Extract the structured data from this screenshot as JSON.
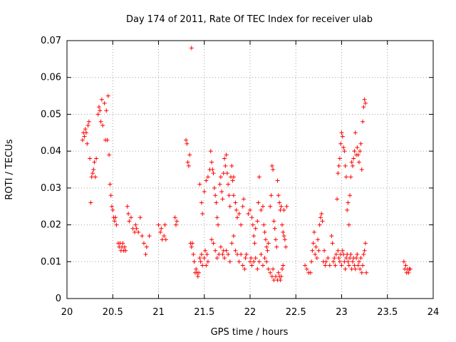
{
  "chart_data": {
    "type": "scatter",
    "title": "Day 174 of 2011, Rate Of TEC Index for receiver ulab",
    "xlabel": "GPS time / hours",
    "ylabel": "ROTI / TECUs",
    "xlim": [
      20,
      24
    ],
    "ylim": [
      0,
      0.07
    ],
    "grid": true,
    "marker": "+",
    "marker_color": "#ff0000",
    "x_ticks": [
      {
        "value": 20,
        "label": "20"
      },
      {
        "value": 20.5,
        "label": "20.5"
      },
      {
        "value": 21,
        "label": "21"
      },
      {
        "value": 21.5,
        "label": "21.5"
      },
      {
        "value": 22,
        "label": "22"
      },
      {
        "value": 22.5,
        "label": "22.5"
      },
      {
        "value": 23,
        "label": "23"
      },
      {
        "value": 23.5,
        "label": "23.5"
      },
      {
        "value": 24,
        "label": "24"
      }
    ],
    "y_ticks": [
      {
        "value": 0,
        "label": "0"
      },
      {
        "value": 0.01,
        "label": "0.01"
      },
      {
        "value": 0.02,
        "label": "0.02"
      },
      {
        "value": 0.03,
        "label": "0.03"
      },
      {
        "value": 0.04,
        "label": "0.04"
      },
      {
        "value": 0.05,
        "label": "0.05"
      },
      {
        "value": 0.06,
        "label": "0.06"
      },
      {
        "value": 0.07,
        "label": "0.07"
      }
    ],
    "points": [
      [
        20.17,
        0.043
      ],
      [
        20.18,
        0.045
      ],
      [
        20.19,
        0.044
      ],
      [
        20.2,
        0.046
      ],
      [
        20.21,
        0.045
      ],
      [
        20.22,
        0.042
      ],
      [
        20.23,
        0.047
      ],
      [
        20.24,
        0.048
      ],
      [
        20.25,
        0.038
      ],
      [
        20.26,
        0.026
      ],
      [
        20.27,
        0.033
      ],
      [
        20.28,
        0.034
      ],
      [
        20.29,
        0.035
      ],
      [
        20.3,
        0.037
      ],
      [
        20.31,
        0.033
      ],
      [
        20.32,
        0.038
      ],
      [
        20.34,
        0.05
      ],
      [
        20.35,
        0.052
      ],
      [
        20.36,
        0.051
      ],
      [
        20.37,
        0.048
      ],
      [
        20.38,
        0.054
      ],
      [
        20.39,
        0.047
      ],
      [
        20.41,
        0.053
      ],
      [
        20.42,
        0.043
      ],
      [
        20.43,
        0.051
      ],
      [
        20.44,
        0.043
      ],
      [
        20.45,
        0.055
      ],
      [
        20.46,
        0.039
      ],
      [
        20.47,
        0.031
      ],
      [
        20.48,
        0.028
      ],
      [
        20.49,
        0.025
      ],
      [
        20.5,
        0.024
      ],
      [
        20.51,
        0.022
      ],
      [
        20.52,
        0.021
      ],
      [
        20.53,
        0.022
      ],
      [
        20.54,
        0.02
      ],
      [
        20.56,
        0.015
      ],
      [
        20.57,
        0.014
      ],
      [
        20.58,
        0.015
      ],
      [
        20.59,
        0.013
      ],
      [
        20.6,
        0.014
      ],
      [
        20.61,
        0.015
      ],
      [
        20.62,
        0.013
      ],
      [
        20.63,
        0.014
      ],
      [
        20.64,
        0.013
      ],
      [
        20.66,
        0.025
      ],
      [
        20.67,
        0.023
      ],
      [
        20.68,
        0.021
      ],
      [
        20.7,
        0.022
      ],
      [
        20.72,
        0.019
      ],
      [
        20.74,
        0.018
      ],
      [
        20.75,
        0.02
      ],
      [
        20.76,
        0.019
      ],
      [
        20.78,
        0.018
      ],
      [
        20.8,
        0.022
      ],
      [
        20.82,
        0.017
      ],
      [
        20.84,
        0.015
      ],
      [
        20.86,
        0.012
      ],
      [
        20.87,
        0.014
      ],
      [
        20.9,
        0.017
      ],
      [
        21.0,
        0.02
      ],
      [
        21.02,
        0.018
      ],
      [
        21.03,
        0.019
      ],
      [
        21.04,
        0.016
      ],
      [
        21.06,
        0.017
      ],
      [
        21.07,
        0.02
      ],
      [
        21.08,
        0.016
      ],
      [
        21.18,
        0.022
      ],
      [
        21.19,
        0.02
      ],
      [
        21.2,
        0.021
      ],
      [
        21.3,
        0.043
      ],
      [
        21.31,
        0.042
      ],
      [
        21.32,
        0.037
      ],
      [
        21.33,
        0.036
      ],
      [
        21.34,
        0.039
      ],
      [
        21.36,
        0.068
      ],
      [
        21.35,
        0.015
      ],
      [
        21.36,
        0.014
      ],
      [
        21.37,
        0.015
      ],
      [
        21.38,
        0.012
      ],
      [
        21.39,
        0.01
      ],
      [
        21.4,
        0.007
      ],
      [
        21.41,
        0.008
      ],
      [
        21.42,
        0.007
      ],
      [
        21.43,
        0.006
      ],
      [
        21.44,
        0.007
      ],
      [
        21.45,
        0.011
      ],
      [
        21.46,
        0.01
      ],
      [
        21.47,
        0.012
      ],
      [
        21.48,
        0.009
      ],
      [
        21.5,
        0.011
      ],
      [
        21.51,
        0.013
      ],
      [
        21.52,
        0.009
      ],
      [
        21.53,
        0.012
      ],
      [
        21.54,
        0.01
      ],
      [
        21.45,
        0.031
      ],
      [
        21.47,
        0.026
      ],
      [
        21.48,
        0.023
      ],
      [
        21.5,
        0.029
      ],
      [
        21.52,
        0.032
      ],
      [
        21.54,
        0.033
      ],
      [
        21.56,
        0.035
      ],
      [
        21.57,
        0.04
      ],
      [
        21.58,
        0.037
      ],
      [
        21.59,
        0.035
      ],
      [
        21.6,
        0.034
      ],
      [
        21.61,
        0.03
      ],
      [
        21.62,
        0.028
      ],
      [
        21.63,
        0.026
      ],
      [
        21.64,
        0.022
      ],
      [
        21.65,
        0.02
      ],
      [
        21.58,
        0.016
      ],
      [
        21.6,
        0.015
      ],
      [
        21.62,
        0.013
      ],
      [
        21.64,
        0.011
      ],
      [
        21.66,
        0.012
      ],
      [
        21.68,
        0.014
      ],
      [
        21.7,
        0.012
      ],
      [
        21.71,
        0.013
      ],
      [
        21.67,
        0.031
      ],
      [
        21.68,
        0.033
      ],
      [
        21.69,
        0.029
      ],
      [
        21.7,
        0.027
      ],
      [
        21.71,
        0.034
      ],
      [
        21.72,
        0.038
      ],
      [
        21.73,
        0.036
      ],
      [
        21.74,
        0.039
      ],
      [
        21.75,
        0.034
      ],
      [
        21.76,
        0.031
      ],
      [
        21.77,
        0.028
      ],
      [
        21.78,
        0.025
      ],
      [
        21.79,
        0.033
      ],
      [
        21.8,
        0.036
      ],
      [
        21.81,
        0.032
      ],
      [
        21.82,
        0.033
      ],
      [
        21.72,
        0.011
      ],
      [
        21.74,
        0.013
      ],
      [
        21.76,
        0.012
      ],
      [
        21.78,
        0.01
      ],
      [
        21.8,
        0.015
      ],
      [
        21.82,
        0.017
      ],
      [
        21.84,
        0.013
      ],
      [
        21.86,
        0.012
      ],
      [
        21.82,
        0.028
      ],
      [
        21.84,
        0.026
      ],
      [
        21.85,
        0.024
      ],
      [
        21.86,
        0.022
      ],
      [
        21.88,
        0.023
      ],
      [
        21.9,
        0.02
      ],
      [
        21.92,
        0.025
      ],
      [
        21.93,
        0.027
      ],
      [
        21.88,
        0.01
      ],
      [
        21.9,
        0.012
      ],
      [
        21.92,
        0.009
      ],
      [
        21.94,
        0.008
      ],
      [
        21.95,
        0.011
      ],
      [
        21.96,
        0.012
      ],
      [
        21.98,
        0.023
      ],
      [
        22.0,
        0.024
      ],
      [
        22.02,
        0.022
      ],
      [
        22.03,
        0.02
      ],
      [
        22.04,
        0.017
      ],
      [
        22.05,
        0.015
      ],
      [
        22.06,
        0.019
      ],
      [
        22.08,
        0.021
      ],
      [
        22.09,
        0.026
      ],
      [
        22.1,
        0.033
      ],
      [
        22.0,
        0.01
      ],
      [
        22.01,
        0.011
      ],
      [
        22.02,
        0.009
      ],
      [
        22.04,
        0.01
      ],
      [
        22.06,
        0.011
      ],
      [
        22.08,
        0.008
      ],
      [
        22.1,
        0.01
      ],
      [
        22.12,
        0.012
      ],
      [
        22.12,
        0.024
      ],
      [
        22.14,
        0.025
      ],
      [
        22.15,
        0.02
      ],
      [
        22.16,
        0.018
      ],
      [
        22.17,
        0.016
      ],
      [
        22.18,
        0.014
      ],
      [
        22.19,
        0.013
      ],
      [
        22.2,
        0.015
      ],
      [
        22.14,
        0.009
      ],
      [
        22.16,
        0.011
      ],
      [
        22.18,
        0.01
      ],
      [
        22.2,
        0.008
      ],
      [
        22.22,
        0.007
      ],
      [
        22.24,
        0.006
      ],
      [
        22.25,
        0.008
      ],
      [
        22.26,
        0.005
      ],
      [
        22.22,
        0.025
      ],
      [
        22.23,
        0.028
      ],
      [
        22.24,
        0.036
      ],
      [
        22.25,
        0.035
      ],
      [
        22.26,
        0.021
      ],
      [
        22.27,
        0.019
      ],
      [
        22.28,
        0.016
      ],
      [
        22.29,
        0.014
      ],
      [
        22.28,
        0.006
      ],
      [
        22.3,
        0.005
      ],
      [
        22.31,
        0.007
      ],
      [
        22.32,
        0.006
      ],
      [
        22.33,
        0.005
      ],
      [
        22.34,
        0.006
      ],
      [
        22.35,
        0.008
      ],
      [
        22.36,
        0.009
      ],
      [
        22.3,
        0.032
      ],
      [
        22.31,
        0.028
      ],
      [
        22.32,
        0.026
      ],
      [
        22.33,
        0.024
      ],
      [
        22.34,
        0.025
      ],
      [
        22.35,
        0.02
      ],
      [
        22.36,
        0.018
      ],
      [
        22.37,
        0.017
      ],
      [
        22.38,
        0.016
      ],
      [
        22.39,
        0.014
      ],
      [
        22.4,
        0.025
      ],
      [
        22.37,
        0.024
      ],
      [
        22.6,
        0.009
      ],
      [
        22.62,
        0.008
      ],
      [
        22.64,
        0.007
      ],
      [
        22.66,
        0.007
      ],
      [
        22.67,
        0.01
      ],
      [
        22.68,
        0.013
      ],
      [
        22.69,
        0.015
      ],
      [
        22.7,
        0.018
      ],
      [
        22.71,
        0.012
      ],
      [
        22.72,
        0.014
      ],
      [
        22.73,
        0.011
      ],
      [
        22.74,
        0.016
      ],
      [
        22.75,
        0.013
      ],
      [
        22.76,
        0.02
      ],
      [
        22.77,
        0.022
      ],
      [
        22.78,
        0.023
      ],
      [
        22.79,
        0.021
      ],
      [
        22.8,
        0.01
      ],
      [
        22.81,
        0.013
      ],
      [
        22.82,
        0.009
      ],
      [
        22.83,
        0.01
      ],
      [
        22.85,
        0.011
      ],
      [
        22.87,
        0.009
      ],
      [
        22.89,
        0.017
      ],
      [
        22.9,
        0.015
      ],
      [
        22.91,
        0.01
      ],
      [
        22.92,
        0.011
      ],
      [
        22.93,
        0.009
      ],
      [
        22.94,
        0.012
      ],
      [
        22.95,
        0.027
      ],
      [
        22.96,
        0.034
      ],
      [
        22.97,
        0.036
      ],
      [
        22.98,
        0.038
      ],
      [
        22.99,
        0.042
      ],
      [
        23.0,
        0.045
      ],
      [
        23.01,
        0.044
      ],
      [
        23.02,
        0.041
      ],
      [
        23.03,
        0.04
      ],
      [
        23.04,
        0.036
      ],
      [
        23.05,
        0.033
      ],
      [
        23.06,
        0.024
      ],
      [
        23.07,
        0.026
      ],
      [
        23.08,
        0.02
      ],
      [
        23.09,
        0.028
      ],
      [
        23.1,
        0.033
      ],
      [
        23.11,
        0.037
      ],
      [
        23.12,
        0.036
      ],
      [
        23.13,
        0.038
      ],
      [
        23.14,
        0.04
      ],
      [
        23.15,
        0.045
      ],
      [
        23.16,
        0.039
      ],
      [
        23.17,
        0.041
      ],
      [
        23.18,
        0.039
      ],
      [
        23.19,
        0.037
      ],
      [
        23.2,
        0.04
      ],
      [
        23.21,
        0.042
      ],
      [
        23.22,
        0.035
      ],
      [
        23.23,
        0.048
      ],
      [
        23.24,
        0.052
      ],
      [
        23.25,
        0.054
      ],
      [
        23.26,
        0.053
      ],
      [
        22.96,
        0.013
      ],
      [
        22.97,
        0.011
      ],
      [
        22.98,
        0.01
      ],
      [
        22.99,
        0.012
      ],
      [
        23.0,
        0.009
      ],
      [
        23.01,
        0.013
      ],
      [
        23.02,
        0.012
      ],
      [
        23.03,
        0.01
      ],
      [
        23.04,
        0.008
      ],
      [
        23.05,
        0.011
      ],
      [
        23.06,
        0.012
      ],
      [
        23.07,
        0.01
      ],
      [
        23.08,
        0.009
      ],
      [
        23.09,
        0.011
      ],
      [
        23.1,
        0.012
      ],
      [
        23.11,
        0.008
      ],
      [
        23.12,
        0.01
      ],
      [
        23.13,
        0.011
      ],
      [
        23.14,
        0.009
      ],
      [
        23.15,
        0.008
      ],
      [
        23.16,
        0.011
      ],
      [
        23.17,
        0.012
      ],
      [
        23.18,
        0.009
      ],
      [
        23.19,
        0.01
      ],
      [
        23.2,
        0.008
      ],
      [
        23.21,
        0.011
      ],
      [
        23.22,
        0.007
      ],
      [
        23.23,
        0.009
      ],
      [
        23.24,
        0.012
      ],
      [
        23.25,
        0.013
      ],
      [
        23.26,
        0.015
      ],
      [
        23.27,
        0.007
      ],
      [
        23.68,
        0.01
      ],
      [
        23.69,
        0.008
      ],
      [
        23.7,
        0.009
      ],
      [
        23.71,
        0.007
      ],
      [
        23.72,
        0.008
      ],
      [
        23.73,
        0.007
      ],
      [
        23.74,
        0.008
      ],
      [
        23.75,
        0.008
      ]
    ]
  }
}
